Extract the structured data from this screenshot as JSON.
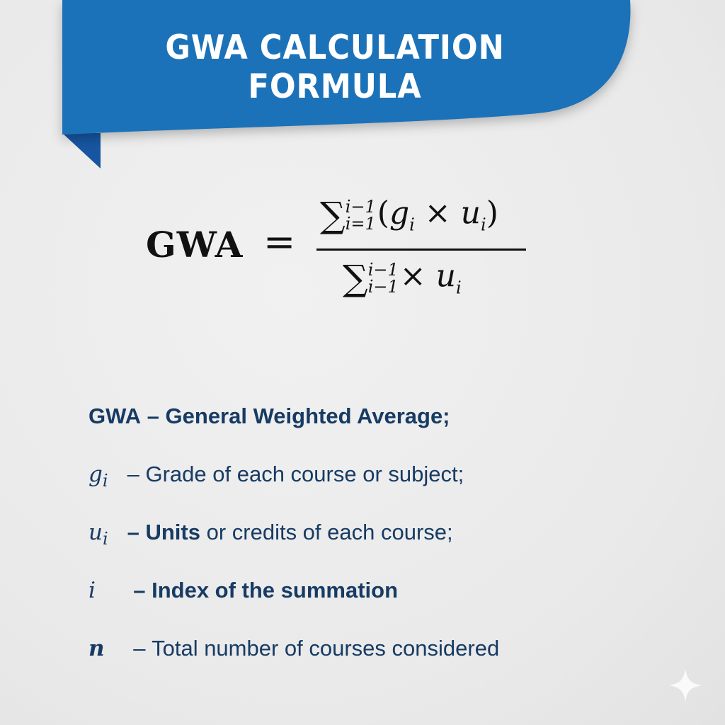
{
  "header": {
    "title": "GWA CALCULATION FORMULA",
    "banner_color": "#1f72b8"
  },
  "formula": {
    "lhs": "GWA",
    "equals": "=",
    "numerator": {
      "sigma": "∑",
      "upper": "i−1",
      "lower": "i=1",
      "expr_open": "(",
      "g": "g",
      "g_sub": "i",
      "times": "×",
      "u": "u",
      "u_sub": "i",
      "expr_close": ")"
    },
    "denominator": {
      "sigma": "∑",
      "upper": "i−1",
      "lower": "i−1",
      "times": "×",
      "u": "u",
      "u_sub": "i"
    }
  },
  "definitions": [
    {
      "symbol": "GWA",
      "sub": "",
      "dash": " – ",
      "bold_text": "General Weighted Average;",
      "text": ""
    },
    {
      "symbol": "g",
      "sub": "i",
      "dash": " – ",
      "bold_text": "",
      "text": "Grade of each course or subject;"
    },
    {
      "symbol": "u",
      "sub": "i",
      "dash": " – ",
      "bold_text": "Units",
      "text": " or credits of each course;"
    },
    {
      "symbol": "i",
      "sub": "",
      "dash": "  – ",
      "bold_text": "Index of the summation",
      "text": ""
    },
    {
      "symbol": "n",
      "sub": "",
      "dash": "  – ",
      "bold_text": "",
      "text": "Total number of courses considered"
    }
  ],
  "text_color": "#173b63"
}
